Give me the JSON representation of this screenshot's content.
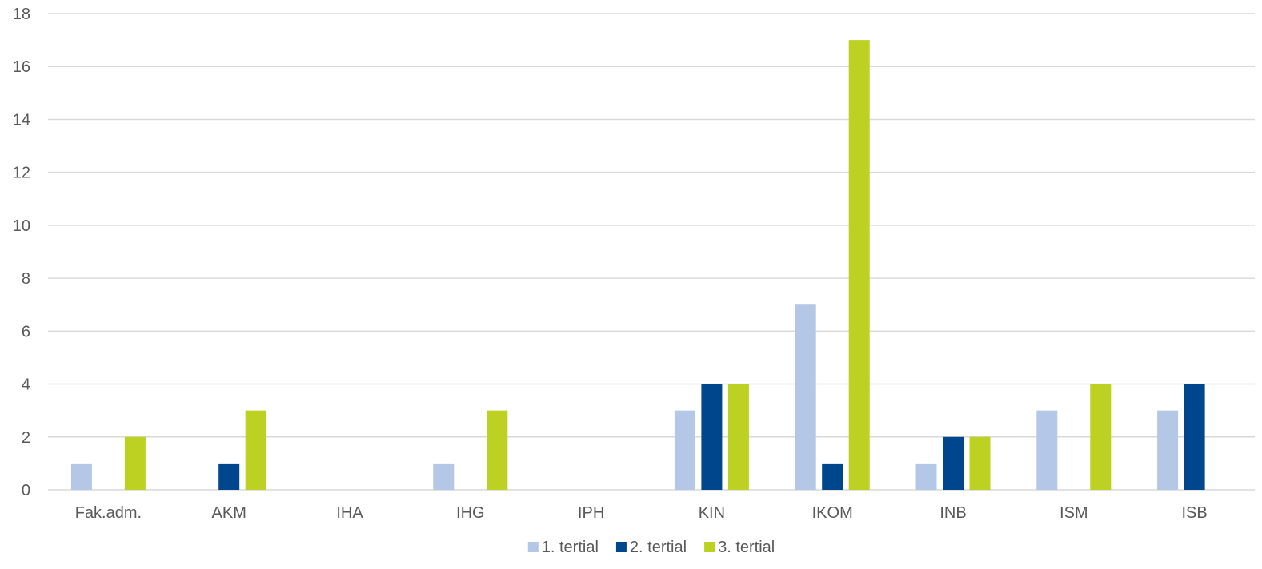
{
  "chart_data": {
    "type": "bar",
    "categories": [
      "Fak.adm.",
      "AKM",
      "IHA",
      "IHG",
      "IPH",
      "KIN",
      "IKOM",
      "INB",
      "ISM",
      "ISB"
    ],
    "series": [
      {
        "name": "1. tertial",
        "color": "#b4c7e7",
        "values": [
          1,
          0,
          0,
          1,
          0,
          3,
          7,
          1,
          3,
          3
        ]
      },
      {
        "name": "2. tertial",
        "color": "#00468c",
        "values": [
          0,
          1,
          0,
          0,
          0,
          4,
          1,
          2,
          0,
          4
        ]
      },
      {
        "name": "3. tertial",
        "color": "#bcd122",
        "values": [
          2,
          3,
          0,
          3,
          0,
          4,
          17,
          2,
          4,
          0
        ]
      }
    ],
    "ylim": [
      0,
      18
    ],
    "yticks": [
      0,
      2,
      4,
      6,
      8,
      10,
      12,
      14,
      16,
      18
    ],
    "grid": true,
    "legend_position": "bottom",
    "title": "",
    "xlabel": "",
    "ylabel": ""
  }
}
